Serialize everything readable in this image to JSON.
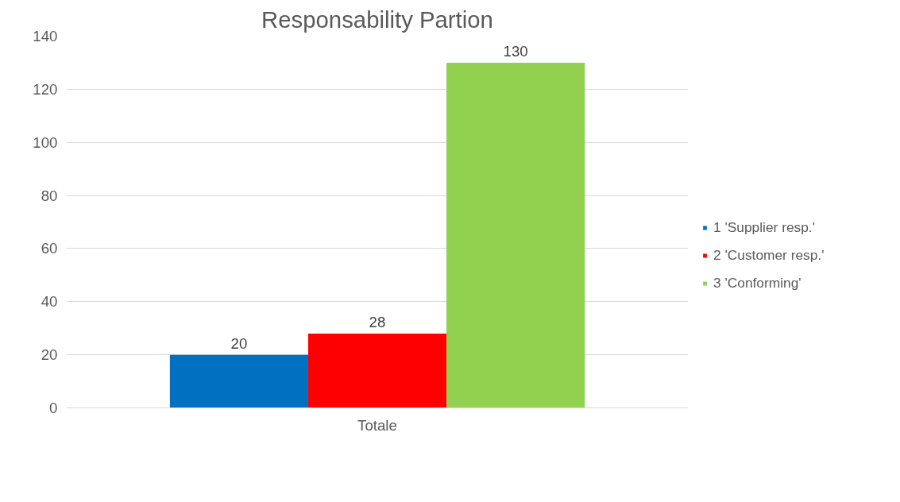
{
  "chart_data": {
    "type": "bar",
    "title": "Responsability Partion",
    "categories": [
      "Totale"
    ],
    "series": [
      {
        "name": "1 'Supplier resp.'",
        "color": "#0070c0",
        "values": [
          20
        ]
      },
      {
        "name": "2 'Customer resp.'",
        "color": "#ff0000",
        "values": [
          28
        ]
      },
      {
        "name": "3 'Conforming'",
        "color": "#92d050",
        "values": [
          130
        ]
      }
    ],
    "ylim": [
      0,
      140
    ],
    "yticks": [
      0,
      20,
      40,
      60,
      80,
      100,
      120,
      140
    ],
    "grid": "y",
    "legend": "right",
    "data_labels": true
  }
}
